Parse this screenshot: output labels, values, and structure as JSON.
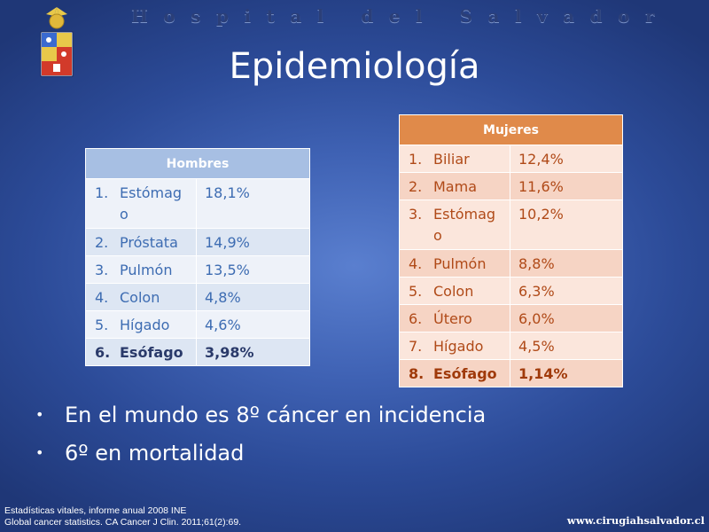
{
  "header": {
    "hospital_name": "Hospital del Salvador",
    "slide_title": "Epidemiología"
  },
  "hombres": {
    "header": "Hombres",
    "rows": [
      {
        "n": "1.",
        "name": "Estómago",
        "value": "18,1%"
      },
      {
        "n": "2.",
        "name": "Próstata",
        "value": "14,9%"
      },
      {
        "n": "3.",
        "name": "Pulmón",
        "value": "13,5%"
      },
      {
        "n": "4.",
        "name": "Colon",
        "value": "4,8%"
      },
      {
        "n": "5.",
        "name": "Hígado",
        "value": "4,6%"
      },
      {
        "n": "6.",
        "name": "Esófago",
        "value": "3,98%"
      }
    ]
  },
  "mujeres": {
    "header": "Mujeres",
    "rows": [
      {
        "n": "1.",
        "name": "Biliar",
        "value": "12,4%"
      },
      {
        "n": "2.",
        "name": "Mama",
        "value": "11,6%"
      },
      {
        "n": "3.",
        "name": "Estómago",
        "value": "10,2%"
      },
      {
        "n": "4.",
        "name": "Pulmón",
        "value": "8,8%"
      },
      {
        "n": "5.",
        "name": "Colon",
        "value": "6,3%"
      },
      {
        "n": "6.",
        "name": "Útero",
        "value": "6,0%"
      },
      {
        "n": "7.",
        "name": "Hígado",
        "value": "4,5%"
      },
      {
        "n": "8.",
        "name": "Esófago",
        "value": "1,14%"
      }
    ]
  },
  "bullets": [
    "En el mundo es 8º cáncer en incidencia",
    "6º en mortalidad"
  ],
  "references": [
    "Estadísticas vitales, informe anual 2008 INE",
    "Global cancer statistics.  CA Cancer J Clin. 2011;61(2):69."
  ],
  "website": "www.cirugiahsalvador.cl",
  "colors": {
    "background": "#3f62b4",
    "hombres_header": "#a7bfe3",
    "mujeres_header": "#e08a4a"
  }
}
